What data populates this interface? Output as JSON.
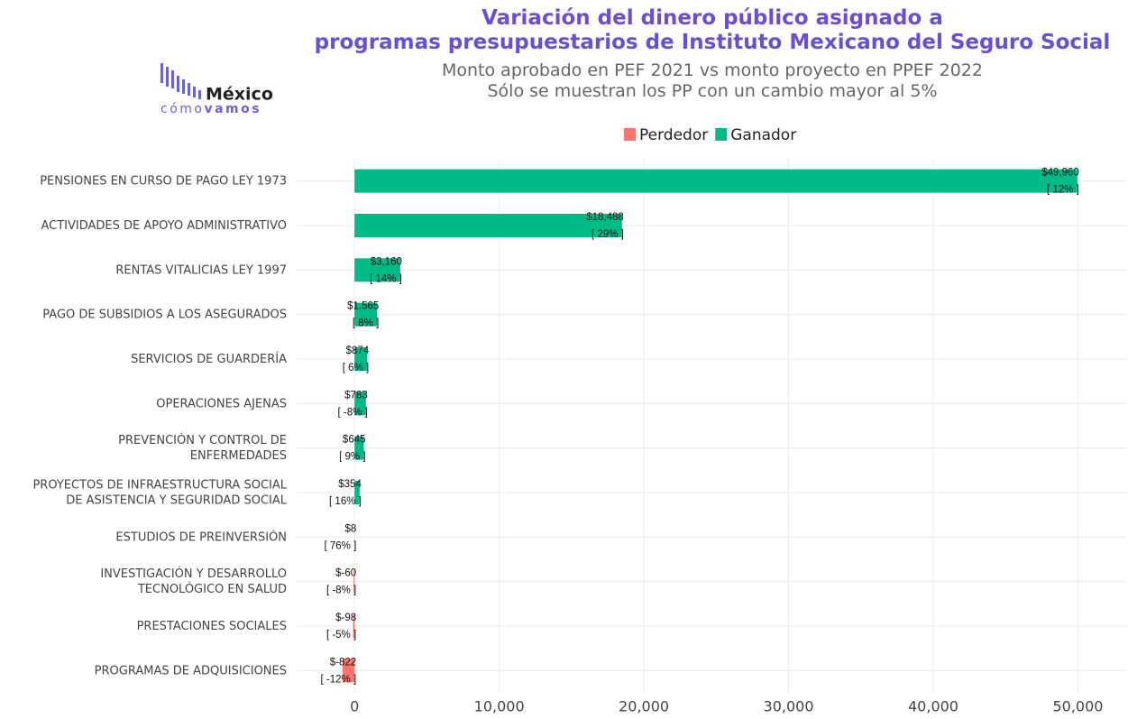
{
  "chart_data": {
    "type": "bar",
    "orientation": "horizontal",
    "title": "Variación del dinero público asignado a\nprogramas presupuestarios de Instituto Mexicano del Seguro Social",
    "subtitle": "Monto aprobado en PEF 2021 vs monto proyecto en PPEF 2022\nSólo se muestran los PP con un cambio mayor al 5%",
    "logo": {
      "name": "México",
      "tagline_light": "cómo",
      "tagline_bold": "vamos"
    },
    "categories": [
      "PENSIONES EN CURSO DE PAGO LEY 1973",
      "ACTIVIDADES DE APOYO ADMINISTRATIVO",
      "RENTAS VITALICIAS LEY 1997",
      "PAGO DE SUBSIDIOS A LOS ASEGURADOS",
      "SERVICIOS DE GUARDERÍA",
      "OPERACIONES AJENAS",
      "PREVENCIÓN Y CONTROL DE\nENFERMEDADES",
      "PROYECTOS DE INFRAESTRUCTURA SOCIAL\nDE ASISTENCIA Y SEGURIDAD SOCIAL",
      "ESTUDIOS DE PREINVERSIÓN",
      "INVESTIGACIÓN Y DESARROLLO\nTECNOLÓGICO EN SALUD",
      "PRESTACIONES SOCIALES",
      "PROGRAMAS DE ADQUISICIONES"
    ],
    "series": [
      {
        "name": "Perdedor",
        "color": "#f8766d",
        "values": [
          null,
          null,
          null,
          null,
          null,
          null,
          null,
          null,
          null,
          -60,
          -98,
          -822
        ],
        "value_labels": [
          null,
          null,
          null,
          null,
          null,
          null,
          null,
          null,
          null,
          "$-60",
          "$-98",
          "$-822"
        ],
        "pct_labels": [
          null,
          null,
          null,
          null,
          null,
          null,
          null,
          null,
          null,
          "[ -8% ]",
          "[ -5% ]",
          "[ -12% ]"
        ]
      },
      {
        "name": "Ganador",
        "color": "#00ba87",
        "values": [
          49960,
          18488,
          3160,
          1565,
          874,
          783,
          645,
          354,
          8,
          null,
          null,
          null
        ],
        "value_labels": [
          "$49,960",
          "$18,488",
          "$3,160",
          "$1,565",
          "$874",
          "$783",
          "$645",
          "$354",
          "$8",
          null,
          null,
          null
        ],
        "pct_labels": [
          "[ 12% ]",
          "[ 29% ]",
          "[ 14% ]",
          "[ 8% ]",
          "[ 6% ]",
          "[ -8% ]",
          "[ 9% ]",
          "[ 16% ]",
          "[ 76% ]",
          null,
          null,
          null
        ]
      }
    ],
    "xlim": [
      -4000,
      53400
    ],
    "xticks": [
      0,
      {
        "value": 10000,
        "label": "10,000"
      },
      {
        "value": 20000,
        "label": "20,000"
      },
      {
        "value": 30000,
        "label": "30,000"
      },
      {
        "value": 40000,
        "label": "40,000"
      },
      {
        "value": 50000,
        "label": "50,000"
      }
    ],
    "grid": true,
    "legend": "top"
  }
}
